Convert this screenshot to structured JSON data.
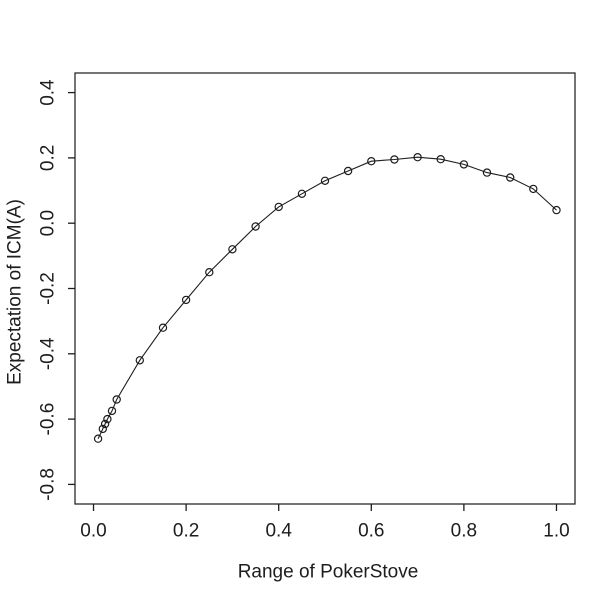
{
  "chart_data": {
    "type": "line",
    "title": "",
    "xlabel": "Range of PokerStove",
    "ylabel": "Expectation of ICM(A)",
    "marker": "open-circle",
    "grid": false,
    "legend_position": "none",
    "line_color": "#1d1d1d",
    "marker_color": "#1d1d1d",
    "background_color": "#ffffff",
    "xlim": [
      -0.04,
      1.04
    ],
    "ylim": [
      -0.86,
      0.46
    ],
    "xticks": [
      0.0,
      0.2,
      0.4,
      0.6,
      0.8,
      1.0
    ],
    "xtick_labels": [
      "0.0",
      "0.2",
      "0.4",
      "0.6",
      "0.8",
      "1.0"
    ],
    "yticks": [
      0.4,
      0.2,
      0.0,
      -0.2,
      -0.4,
      -0.6,
      -0.8
    ],
    "ytick_labels": [
      "0.4",
      "0.2",
      "0.0",
      "-0.2",
      "-0.4",
      "-0.6",
      "-0.8"
    ],
    "x": [
      0.01,
      0.02,
      0.025,
      0.03,
      0.04,
      0.05,
      0.1,
      0.15,
      0.2,
      0.25,
      0.3,
      0.35,
      0.4,
      0.45,
      0.5,
      0.55,
      0.6,
      0.65,
      0.7,
      0.75,
      0.8,
      0.85,
      0.9,
      0.95,
      1.0
    ],
    "y": [
      -0.66,
      -0.63,
      -0.615,
      -0.6,
      -0.575,
      -0.54,
      -0.42,
      -0.32,
      -0.235,
      -0.15,
      -0.08,
      -0.01,
      0.05,
      0.09,
      0.13,
      0.16,
      0.19,
      0.195,
      0.202,
      0.196,
      0.18,
      0.155,
      0.14,
      0.105,
      0.04
    ]
  }
}
